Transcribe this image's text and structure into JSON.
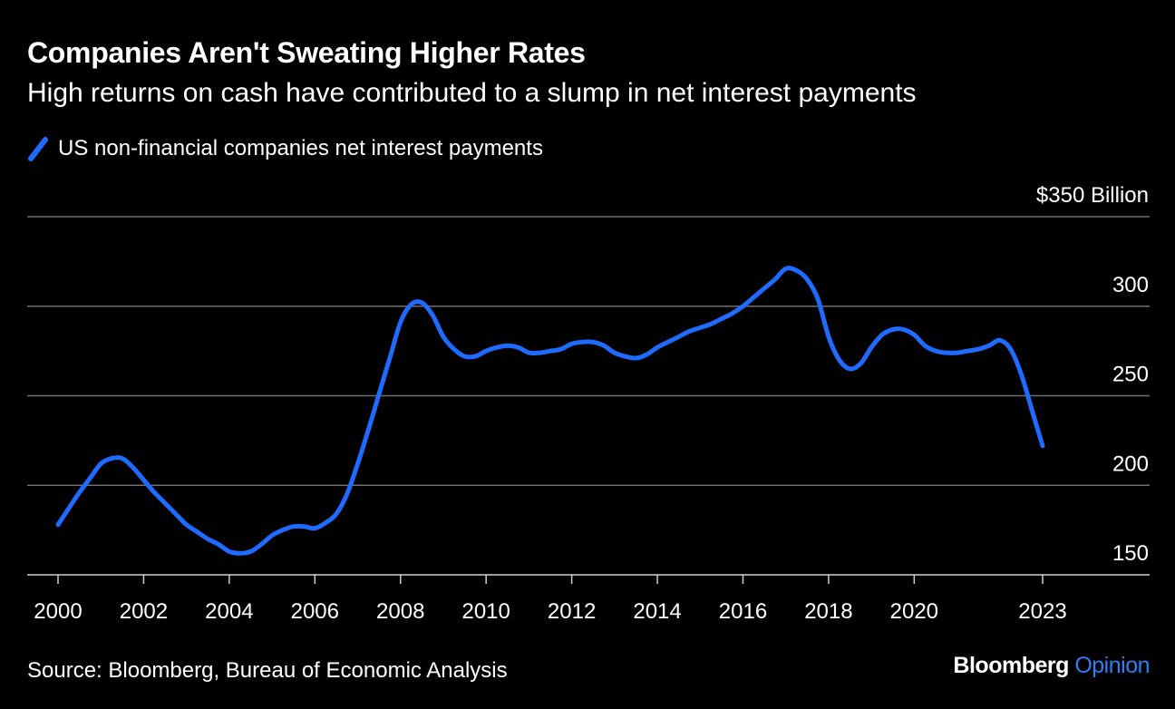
{
  "header": {
    "title": "Companies Aren't Sweating Higher Rates",
    "subtitle": "High returns on cash have contributed to a slump in net interest payments"
  },
  "legend": {
    "label": "US non-financial companies net interest payments",
    "color": "#1f6bff"
  },
  "footer": {
    "source": "Source: Bloomberg, Bureau of Economic Analysis",
    "brand_main": "Bloomberg",
    "brand_accent": "Opinion"
  },
  "colors": {
    "background": "#000000",
    "line": "#1f6bff",
    "grid": "#6e6e6e",
    "text": "#ffffff",
    "brand_accent": "#2f7ff2"
  },
  "chart_data": {
    "type": "line",
    "title": "Companies Aren't Sweating Higher Rates",
    "subtitle": "High returns on cash have contributed to a slump in net interest payments",
    "xlabel": "",
    "ylabel": "",
    "unit_label": "$350 Billion",
    "xlim": [
      2000,
      2023
    ],
    "ylim": [
      150,
      350
    ],
    "y_ticks": [
      {
        "value": 350,
        "label": "$350 Billion"
      },
      {
        "value": 300,
        "label": "300"
      },
      {
        "value": 250,
        "label": "250"
      },
      {
        "value": 200,
        "label": "200"
      },
      {
        "value": 150,
        "label": "150"
      }
    ],
    "x_ticks": [
      {
        "value": 2000,
        "label": "2000"
      },
      {
        "value": 2002,
        "label": "2002"
      },
      {
        "value": 2004,
        "label": "2004"
      },
      {
        "value": 2006,
        "label": "2006"
      },
      {
        "value": 2008,
        "label": "2008"
      },
      {
        "value": 2010,
        "label": "2010"
      },
      {
        "value": 2012,
        "label": "2012"
      },
      {
        "value": 2014,
        "label": "2014"
      },
      {
        "value": 2016,
        "label": "2016"
      },
      {
        "value": 2018,
        "label": "2018"
      },
      {
        "value": 2020,
        "label": "2020"
      },
      {
        "value": 2023,
        "label": "2023"
      }
    ],
    "grid": true,
    "legend_position": "top-left",
    "series": [
      {
        "name": "US non-financial companies net interest payments",
        "x": [
          2000.0,
          2000.25,
          2000.5,
          2000.75,
          2001.0,
          2001.25,
          2001.5,
          2001.75,
          2002.0,
          2002.25,
          2002.5,
          2002.75,
          2003.0,
          2003.25,
          2003.5,
          2003.75,
          2004.0,
          2004.25,
          2004.5,
          2004.75,
          2005.0,
          2005.25,
          2005.5,
          2005.75,
          2006.0,
          2006.25,
          2006.5,
          2006.75,
          2007.0,
          2007.25,
          2007.5,
          2007.75,
          2008.0,
          2008.25,
          2008.5,
          2008.75,
          2009.0,
          2009.25,
          2009.5,
          2009.75,
          2010.0,
          2010.25,
          2010.5,
          2010.75,
          2011.0,
          2011.25,
          2011.5,
          2011.75,
          2012.0,
          2012.25,
          2012.5,
          2012.75,
          2013.0,
          2013.25,
          2013.5,
          2013.75,
          2014.0,
          2014.25,
          2014.5,
          2014.75,
          2015.0,
          2015.25,
          2015.5,
          2015.75,
          2016.0,
          2016.25,
          2016.5,
          2016.75,
          2017.0,
          2017.25,
          2017.5,
          2017.75,
          2018.0,
          2018.25,
          2018.5,
          2018.75,
          2019.0,
          2019.25,
          2019.5,
          2019.75,
          2020.0,
          2020.25,
          2020.5,
          2020.75,
          2021.0,
          2021.25,
          2021.5,
          2021.75,
          2022.0,
          2022.25,
          2022.5,
          2022.75,
          2023.0
        ],
        "values": [
          178,
          187,
          196,
          204,
          212,
          215,
          215,
          210,
          203,
          196,
          190,
          184,
          178,
          174,
          170,
          167,
          163,
          162,
          163,
          167,
          172,
          175,
          177,
          177,
          176,
          179,
          184,
          195,
          212,
          231,
          251,
          271,
          291,
          301,
          302,
          295,
          283,
          276,
          272,
          272,
          275,
          277,
          278,
          277,
          274,
          274,
          275,
          276,
          279,
          280,
          280,
          278,
          274,
          272,
          271,
          273,
          277,
          280,
          283,
          286,
          288,
          290,
          293,
          296,
          300,
          305,
          310,
          315,
          321,
          320,
          315,
          304,
          283,
          270,
          265,
          268,
          277,
          284,
          287,
          287,
          284,
          278,
          275,
          274,
          274,
          275,
          276,
          278,
          281,
          276,
          262,
          242,
          222
        ]
      }
    ]
  }
}
